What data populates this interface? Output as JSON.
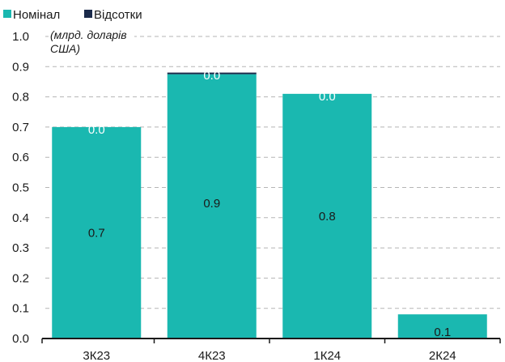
{
  "chart_data": {
    "type": "bar",
    "stacked": true,
    "categories": [
      "3К23",
      "4К23",
      "1К24",
      "2К24"
    ],
    "series": [
      {
        "name": "Номінал",
        "color": "#1ab8b0",
        "values": [
          0.7,
          0.875,
          0.81,
          0.08
        ],
        "labels": [
          "0.7",
          "0.9",
          "0.8",
          "0.1"
        ]
      },
      {
        "name": "Відсотки",
        "color": "#1a2a4a",
        "values": [
          0.0,
          0.005,
          0.0,
          0.0
        ],
        "labels": [
          "0.0",
          "0.0",
          "0.0",
          ""
        ]
      }
    ],
    "unit_label_line1": "(млрд. доларів",
    "unit_label_line2": "США)",
    "ylim": [
      0,
      1.0
    ],
    "yticks": [
      "0.0",
      "0.1",
      "0.2",
      "0.3",
      "0.4",
      "0.5",
      "0.6",
      "0.7",
      "0.8",
      "0.9",
      "1.0"
    ],
    "grid": true,
    "legend_position": "top-left"
  }
}
